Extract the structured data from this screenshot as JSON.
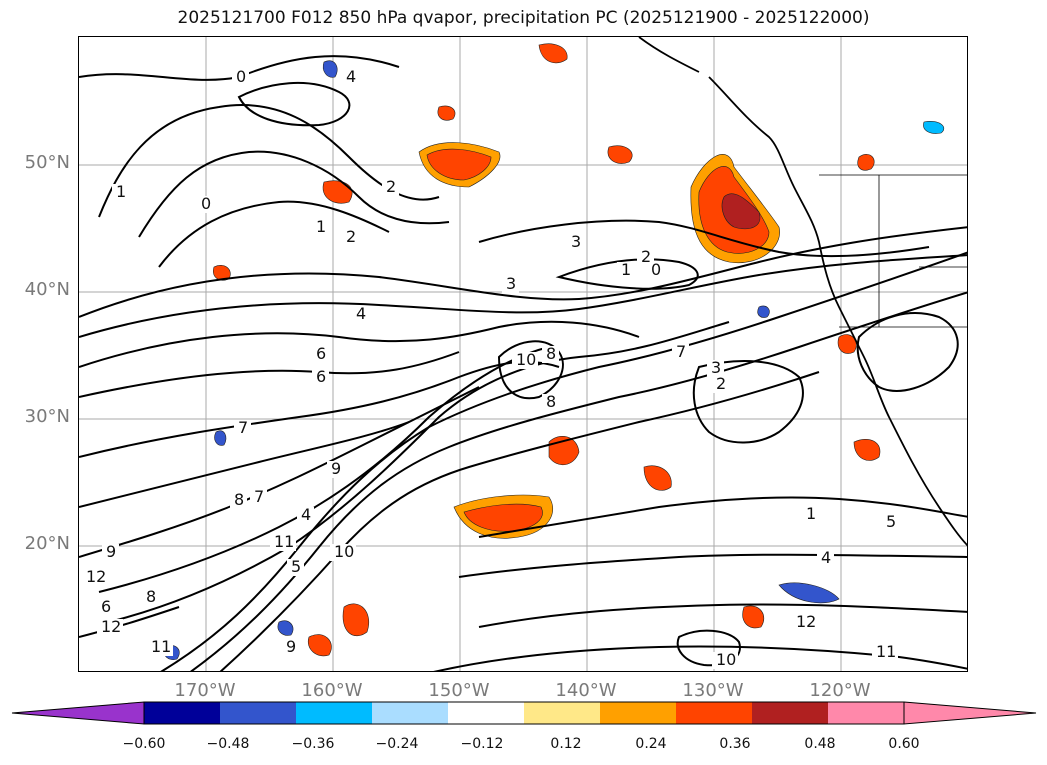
{
  "title": "2025121700 F012 850 hPa qvapor, precipitation PC (2025121900 - 2025122000)",
  "map": {
    "region": "North Pacific / western North America",
    "lon_range": [
      -180,
      -110
    ],
    "lat_range": [
      10,
      60
    ],
    "gridlines": true,
    "lat_ticks": [
      "50°N",
      "40°N",
      "30°N",
      "20°N"
    ],
    "lon_ticks": [
      "170°W",
      "160°W",
      "150°W",
      "140°W",
      "130°W",
      "120°W"
    ],
    "contour_labels": [
      "0",
      "1",
      "4",
      "2",
      "0",
      "1",
      "2",
      "3",
      "2",
      "1",
      "0",
      "3",
      "4",
      "6",
      "10",
      "8",
      "7",
      "3",
      "2",
      "8",
      "6",
      "7",
      "9",
      "8",
      "9",
      "7",
      "4",
      "11",
      "10",
      "12",
      "5",
      "6",
      "8",
      "12",
      "11",
      "9",
      "10",
      "12",
      "11",
      "1",
      "4",
      "5"
    ]
  },
  "colorbar": {
    "ticks": [
      "−0.60",
      "−0.48",
      "−0.36",
      "−0.24",
      "−0.12",
      "0.12",
      "0.24",
      "0.36",
      "0.48",
      "0.60"
    ],
    "colors": {
      "extend_low": "#9933cc",
      "bins": [
        "#000099",
        "#3355cc",
        "#00bbff",
        "#aaddff",
        "#ffffff",
        "#ffe888",
        "#ffa000",
        "#ff4400",
        "#b02020",
        "#ff88aa"
      ],
      "extend_low_first": "#9933cc"
    }
  }
}
